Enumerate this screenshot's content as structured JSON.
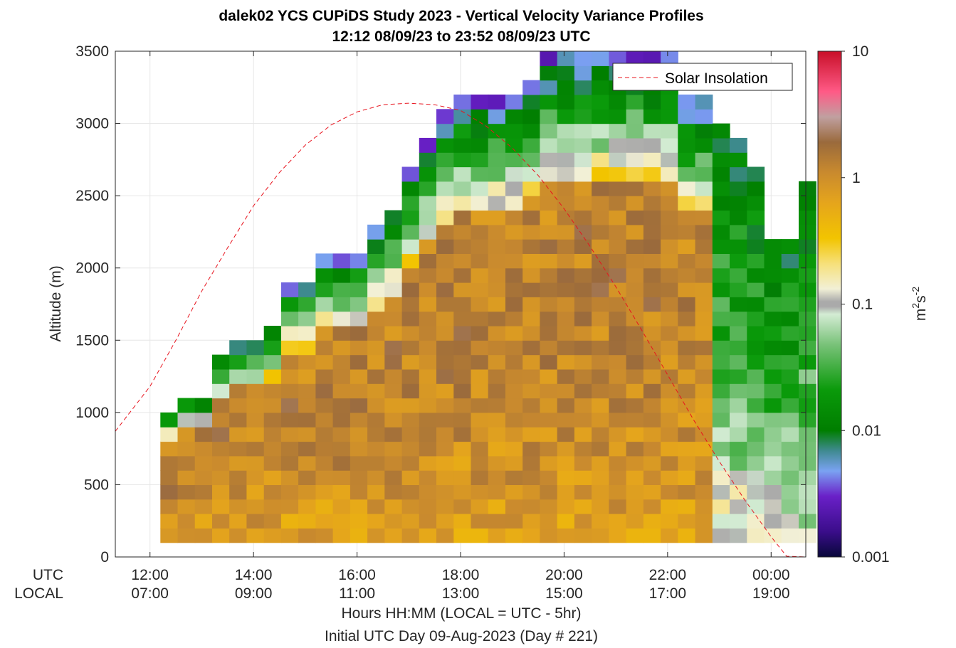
{
  "chart_data": {
    "type": "heatmap",
    "title": "dalek02 YCS CUPiDS Study 2023 - Vertical Velocity Variance Profiles",
    "subtitle": "12:12 08/09/23 to 23:52 08/09/23  UTC",
    "ylabel": "Altitude (m)",
    "xlabel": "Hours HH:MM  (LOCAL = UTC - 5hr)",
    "xlabel2": "Initial UTC Day 09-Aug-2023 (Day # 221)",
    "x_row_labels": [
      "UTC",
      "LOCAL"
    ],
    "x_ticks_utc": [
      "12:00",
      "14:00",
      "16:00",
      "18:00",
      "20:00",
      "22:00",
      "00:00"
    ],
    "x_ticks_local": [
      "07:00",
      "09:00",
      "11:00",
      "13:00",
      "15:00",
      "17:00",
      "19:00"
    ],
    "x_tick_hours": [
      12,
      14,
      16,
      18,
      20,
      22,
      24
    ],
    "xlim_hours": [
      11.33,
      24.67
    ],
    "y_ticks": [
      "0",
      "500",
      "1000",
      "1500",
      "2000",
      "2500",
      "3000",
      "3500"
    ],
    "ylim": [
      0,
      3500
    ],
    "grid": true,
    "legend": {
      "entries": [
        "Solar Insolation"
      ],
      "location": "top-right"
    },
    "colorbar": {
      "label": "m²s⁻²",
      "label_main": "m",
      "label_sup1": "2",
      "label_mid": "s",
      "label_sup2": "-2",
      "scale": "log",
      "ticks": [
        "0.001",
        "0.01",
        "0.1",
        "1",
        "10"
      ],
      "range": [
        0.001,
        10
      ]
    },
    "colors": {
      "solar_line": "#e8141e",
      "grid": "#e6e6e6",
      "axis": "#262626"
    },
    "profile_start_hour": 12.2,
    "profile_step_hours": 0.3333,
    "gate_base_m": 100,
    "gate_step_m": 100,
    "profile_top_m": [
      1000,
      1100,
      1100,
      1400,
      1500,
      1500,
      1600,
      1900,
      1900,
      2100,
      2100,
      2100,
      2300,
      2400,
      2700,
      2900,
      3100,
      3200,
      3200,
      3200,
      3200,
      3300,
      3500,
      3500,
      3500,
      3500,
      3500,
      3500,
      3500,
      3500,
      3200,
      3200,
      3000,
      2900,
      2700,
      2200,
      2200,
      2600
    ],
    "solar_insolation": {
      "x_hours": [
        11.33,
        12.0,
        12.5,
        13.0,
        13.5,
        14.0,
        14.5,
        15.0,
        15.5,
        16.0,
        16.5,
        17.0,
        17.5,
        18.0,
        18.5,
        19.0,
        19.5,
        20.0,
        20.5,
        21.0,
        21.5,
        22.0,
        22.5,
        23.0,
        23.5,
        24.0,
        24.3,
        24.67
      ],
      "altitude_m": [
        870,
        1180,
        1500,
        1840,
        2140,
        2430,
        2660,
        2850,
        2990,
        3080,
        3130,
        3140,
        3130,
        3090,
        2980,
        2830,
        2640,
        2410,
        2150,
        1870,
        1570,
        1260,
        950,
        660,
        390,
        140,
        5,
        0
      ]
    }
  }
}
